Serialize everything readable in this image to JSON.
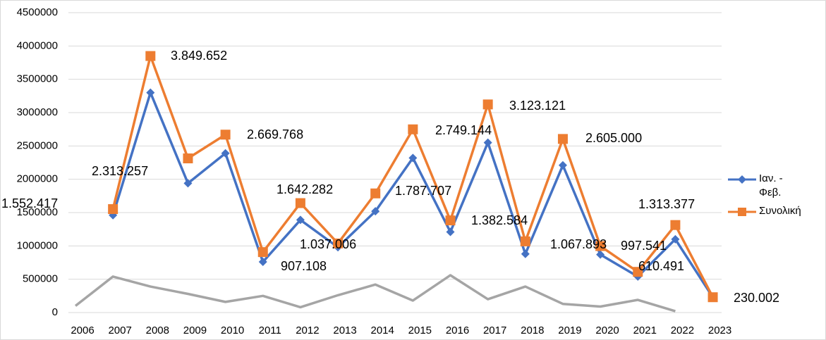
{
  "chart_data": {
    "type": "line",
    "categories": [
      "2006",
      "2007",
      "2008",
      "2009",
      "2010",
      "2011",
      "2012",
      "2013",
      "2014",
      "2015",
      "2016",
      "2017",
      "2018",
      "2019",
      "2020",
      "2021",
      "2022",
      "2023"
    ],
    "series": [
      {
        "name": "Ιαν. - Φεβ.",
        "color": "#4472c4",
        "marker": "diamond",
        "values": [
          null,
          1460000,
          3300000,
          1940000,
          2390000,
          760000,
          1390000,
          980000,
          1520000,
          2320000,
          1210000,
          2550000,
          880000,
          2210000,
          870000,
          540000,
          1100000,
          230000
        ]
      },
      {
        "name": "Συνολική",
        "color": "#ed7d31",
        "marker": "square",
        "values": [
          null,
          1552417,
          3849652,
          2313257,
          2669768,
          907108,
          1642282,
          1037006,
          1787707,
          2749144,
          1382584,
          3123121,
          1067893,
          2605000,
          997541,
          610491,
          1313377,
          230002
        ],
        "value_labels": [
          null,
          "1.552.417",
          "3.849.652",
          "2.313.257",
          "2.669.768",
          "907.108",
          "1.642.282",
          "1.037.006",
          "1.787.707",
          "2.749.144",
          "1.382.584",
          "3.123.121",
          "1.067.893",
          "2.605.000",
          "997.541",
          "610.491",
          "1.313.377",
          "230.002"
        ]
      },
      {
        "color": "#a5a5a5",
        "marker": "triangle",
        "values": [
          100000,
          540000,
          390000,
          280000,
          160000,
          250000,
          80000,
          260000,
          420000,
          180000,
          560000,
          200000,
          390000,
          130000,
          90000,
          190000,
          20000,
          null
        ]
      }
    ],
    "ylim": [
      0,
      4500000
    ],
    "yticks": [
      0,
      500000,
      1000000,
      1500000,
      2000000,
      2500000,
      3000000,
      3500000,
      4000000,
      4500000
    ],
    "grid": true,
    "legend": "right"
  }
}
